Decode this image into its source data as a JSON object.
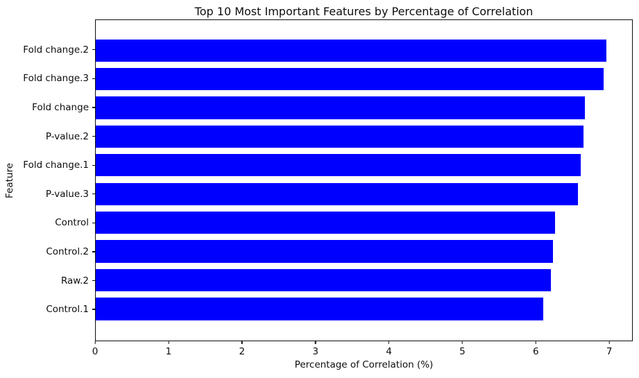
{
  "chart_data": {
    "type": "bar",
    "orientation": "horizontal",
    "title": "Top 10 Most Important Features by Percentage of Correlation",
    "xlabel": "Percentage of Correlation (%)",
    "ylabel": "Feature",
    "categories": [
      "Fold change.2",
      "Fold change.3",
      "Fold change",
      "P-value.2",
      "Fold change.1",
      "P-value.3",
      "Control",
      "Control.2",
      "Raw.2",
      "Control.1"
    ],
    "values": [
      6.97,
      6.93,
      6.68,
      6.66,
      6.62,
      6.58,
      6.27,
      6.24,
      6.21,
      6.11
    ],
    "xticks": [
      0,
      1,
      2,
      3,
      4,
      5,
      6,
      7
    ],
    "xlim": [
      0,
      7.32
    ],
    "bar_color": "#0000ff",
    "axis_color": "#0d0d0d",
    "text_color": "#0d0d0d",
    "background_color": "#ffffff",
    "grid": false,
    "legend_position": "none"
  }
}
